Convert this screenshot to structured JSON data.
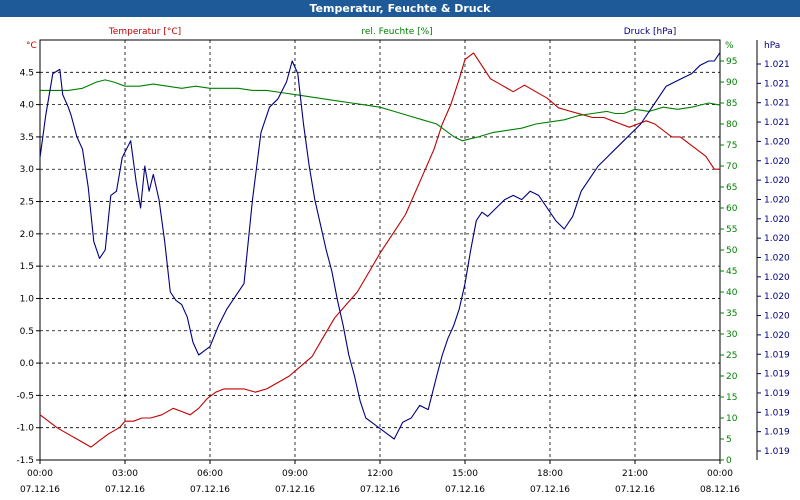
{
  "window": {
    "title": "Temperatur, Feuchte & Druck"
  },
  "chart_data": {
    "type": "line",
    "title": "Temperatur, Feuchte & Druck",
    "grid": true,
    "x_ticks": [
      {
        "value": 0,
        "time": "00:00",
        "date": "07.12.16"
      },
      {
        "value": 3,
        "time": "03:00",
        "date": "07.12.16"
      },
      {
        "value": 6,
        "time": "06:00",
        "date": "07.12.16"
      },
      {
        "value": 9,
        "time": "09:00",
        "date": "07.12.16"
      },
      {
        "value": 12,
        "time": "12:00",
        "date": "07.12.16"
      },
      {
        "value": 15,
        "time": "15:00",
        "date": "07.12.16"
      },
      {
        "value": 18,
        "time": "18:00",
        "date": "07.12.16"
      },
      {
        "value": 21,
        "time": "21:00",
        "date": "07.12.16"
      },
      {
        "value": 24,
        "time": "00:00",
        "date": "08.12.16"
      }
    ],
    "xlim": [
      0,
      24
    ],
    "axes": {
      "temperature": {
        "label": "Temperatur [°C]",
        "unit": "°C",
        "color": "#c00000",
        "ylim": [
          -1.5,
          5.0
        ],
        "ticks": [
          "-1.5",
          "-1.0",
          "-0.5",
          "0.0",
          "0.5",
          "1.0",
          "1.5",
          "2.0",
          "2.5",
          "3.0",
          "3.5",
          "4.0",
          "4.5"
        ],
        "tick_values": [
          -1.5,
          -1.0,
          -0.5,
          0.0,
          0.5,
          1.0,
          1.5,
          2.0,
          2.5,
          3.0,
          3.5,
          4.0,
          4.5
        ]
      },
      "humidity": {
        "label": "rel. Feuchte [%]",
        "unit": "%",
        "color": "#008000",
        "ylim": [
          0,
          100
        ],
        "ticks": [
          "0",
          "5",
          "10",
          "15",
          "20",
          "25",
          "30",
          "35",
          "40",
          "45",
          "50",
          "55",
          "60",
          "65",
          "70",
          "75",
          "80",
          "85",
          "90",
          "95"
        ],
        "tick_values": [
          0,
          5,
          10,
          15,
          20,
          25,
          30,
          35,
          40,
          45,
          50,
          55,
          60,
          65,
          70,
          75,
          80,
          85,
          90,
          95
        ]
      },
      "pressure": {
        "label": "Druck [hPa]",
        "unit": "hPa",
        "color": "#000080",
        "ticks": [
          "1.019",
          "1.019",
          "1.019",
          "1.019",
          "1.019",
          "1.019",
          "1.020",
          "1.020",
          "1.020",
          "1.020",
          "1.020",
          "1.020",
          "1.020",
          "1.020",
          "1.020",
          "1.020",
          "1.020",
          "1.021",
          "1.021",
          "1.021",
          "1.021"
        ]
      }
    },
    "series": [
      {
        "name": "Temperatur [°C]",
        "axis": "temperature",
        "color": "#c00000",
        "x": [
          0.0,
          0.3,
          0.6,
          1.0,
          1.4,
          1.8,
          2.1,
          2.4,
          2.8,
          3.0,
          3.3,
          3.6,
          3.9,
          4.3,
          4.7,
          5.0,
          5.3,
          5.6,
          5.9,
          6.2,
          6.5,
          6.8,
          7.2,
          7.6,
          8.0,
          8.4,
          8.8,
          9.2,
          9.6,
          10.0,
          10.4,
          10.8,
          11.2,
          11.6,
          12.0,
          12.3,
          12.6,
          12.9,
          13.2,
          13.5,
          13.9,
          14.2,
          14.5,
          14.8,
          15.0,
          15.3,
          15.6,
          15.9,
          16.3,
          16.7,
          17.1,
          17.5,
          17.9,
          18.3,
          18.7,
          19.1,
          19.5,
          19.9,
          20.2,
          20.5,
          20.8,
          21.1,
          21.4,
          21.7,
          22.0,
          22.3,
          22.6,
          22.9,
          23.2,
          23.5,
          23.8,
          24.0
        ],
        "y": [
          -0.8,
          -0.9,
          -1.0,
          -1.1,
          -1.2,
          -1.3,
          -1.2,
          -1.1,
          -1.0,
          -0.9,
          -0.9,
          -0.85,
          -0.85,
          -0.8,
          -0.7,
          -0.75,
          -0.8,
          -0.7,
          -0.55,
          -0.45,
          -0.4,
          -0.4,
          -0.4,
          -0.45,
          -0.4,
          -0.3,
          -0.2,
          -0.05,
          0.1,
          0.4,
          0.7,
          0.9,
          1.1,
          1.4,
          1.7,
          1.9,
          2.1,
          2.3,
          2.6,
          2.9,
          3.3,
          3.7,
          4.0,
          4.4,
          4.7,
          4.8,
          4.6,
          4.4,
          4.3,
          4.2,
          4.3,
          4.2,
          4.1,
          3.95,
          3.9,
          3.85,
          3.8,
          3.8,
          3.75,
          3.7,
          3.65,
          3.7,
          3.75,
          3.7,
          3.6,
          3.5,
          3.5,
          3.4,
          3.3,
          3.2,
          3.0,
          3.0
        ]
      },
      {
        "name": "rel. Feuchte [%]",
        "axis": "humidity",
        "color": "#008000",
        "x": [
          0.0,
          0.5,
          1.0,
          1.5,
          2.0,
          2.3,
          2.6,
          3.0,
          3.5,
          4.0,
          4.5,
          5.0,
          5.5,
          6.0,
          6.5,
          7.0,
          7.5,
          8.0,
          8.5,
          9.0,
          9.5,
          10.0,
          10.5,
          11.0,
          11.5,
          12.0,
          12.5,
          13.0,
          13.5,
          14.0,
          14.3,
          14.6,
          14.9,
          15.2,
          15.5,
          16.0,
          16.5,
          17.0,
          17.5,
          18.0,
          18.5,
          19.0,
          19.5,
          20.0,
          20.3,
          20.6,
          21.0,
          21.5,
          22.0,
          22.5,
          23.0,
          23.3,
          23.6,
          24.0
        ],
        "y": [
          88,
          88,
          88,
          88.5,
          90,
          90.5,
          90,
          89,
          89,
          89.5,
          89,
          88.5,
          89,
          88.5,
          88.5,
          88.5,
          88,
          88,
          87.5,
          87,
          86.5,
          86,
          85.5,
          85,
          84.5,
          84,
          83,
          82,
          81,
          80,
          78.5,
          77,
          76,
          76.5,
          77,
          78,
          78.5,
          79,
          80,
          80.5,
          81,
          82,
          82.5,
          83,
          82.5,
          82.5,
          83.5,
          83,
          84,
          83.5,
          84,
          84.5,
          85,
          84.5
        ]
      },
      {
        "name": "Druck [hPa]",
        "axis": "pressure",
        "color": "#000080",
        "note": "normalized position 0..1 on the Druck axis",
        "x": [
          0.0,
          0.2,
          0.45,
          0.7,
          0.8,
          1.0,
          1.1,
          1.3,
          1.5,
          1.7,
          1.9,
          2.1,
          2.3,
          2.5,
          2.7,
          2.9,
          3.05,
          3.2,
          3.4,
          3.55,
          3.7,
          3.85,
          4.0,
          4.2,
          4.4,
          4.6,
          4.8,
          5.0,
          5.2,
          5.4,
          5.6,
          5.8,
          6.0,
          6.3,
          6.6,
          6.9,
          7.2,
          7.5,
          7.8,
          8.1,
          8.4,
          8.7,
          8.9,
          9.1,
          9.3,
          9.5,
          9.7,
          9.9,
          10.1,
          10.3,
          10.5,
          10.7,
          10.9,
          11.1,
          11.3,
          11.5,
          11.7,
          11.9,
          12.1,
          12.3,
          12.5,
          12.8,
          13.1,
          13.4,
          13.7,
          14.0,
          14.2,
          14.4,
          14.6,
          14.8,
          15.0,
          15.2,
          15.4,
          15.6,
          15.8,
          16.1,
          16.4,
          16.7,
          17.0,
          17.3,
          17.6,
          17.9,
          18.2,
          18.5,
          18.8,
          19.1,
          19.4,
          19.7,
          20.0,
          20.3,
          20.6,
          20.9,
          21.2,
          21.5,
          21.8,
          22.1,
          22.4,
          22.7,
          23.0,
          23.3,
          23.6,
          23.8,
          24.0
        ],
        "y": [
          0.72,
          0.82,
          0.92,
          0.93,
          0.87,
          0.84,
          0.82,
          0.77,
          0.74,
          0.65,
          0.52,
          0.48,
          0.5,
          0.63,
          0.64,
          0.72,
          0.74,
          0.76,
          0.66,
          0.6,
          0.7,
          0.64,
          0.68,
          0.62,
          0.52,
          0.4,
          0.38,
          0.37,
          0.34,
          0.28,
          0.25,
          0.26,
          0.27,
          0.32,
          0.36,
          0.39,
          0.42,
          0.62,
          0.78,
          0.84,
          0.86,
          0.9,
          0.95,
          0.92,
          0.8,
          0.7,
          0.62,
          0.56,
          0.5,
          0.45,
          0.38,
          0.32,
          0.25,
          0.2,
          0.14,
          0.1,
          0.09,
          0.08,
          0.07,
          0.06,
          0.05,
          0.09,
          0.1,
          0.13,
          0.12,
          0.2,
          0.25,
          0.29,
          0.32,
          0.36,
          0.42,
          0.5,
          0.57,
          0.59,
          0.58,
          0.6,
          0.62,
          0.63,
          0.62,
          0.64,
          0.63,
          0.6,
          0.57,
          0.55,
          0.58,
          0.64,
          0.67,
          0.7,
          0.72,
          0.74,
          0.76,
          0.78,
          0.8,
          0.83,
          0.86,
          0.89,
          0.9,
          0.91,
          0.92,
          0.94,
          0.95,
          0.95,
          0.97
        ]
      }
    ]
  }
}
